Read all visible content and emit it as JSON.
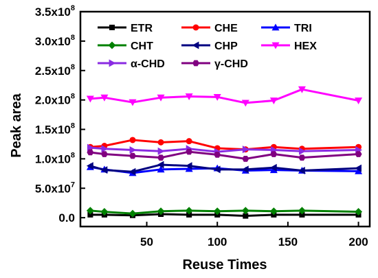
{
  "chart_data": {
    "type": "line",
    "xlabel": "Reuse Times",
    "ylabel": "Peak area",
    "xlim": [
      3,
      208
    ],
    "ylim": [
      -15000000.0,
      350000000.0
    ],
    "xticks": [
      {
        "value": 50,
        "label": "50"
      },
      {
        "value": 100,
        "label": "100"
      },
      {
        "value": 150,
        "label": "150"
      },
      {
        "value": 200,
        "label": "200"
      }
    ],
    "yticks": [
      {
        "value": 0,
        "label": "0.0",
        "exp": ""
      },
      {
        "value": 50000000.0,
        "label": "5.0x10",
        "exp": "7"
      },
      {
        "value": 100000000.0,
        "label": "1.0x10",
        "exp": "8"
      },
      {
        "value": 150000000.0,
        "label": "1.5x10",
        "exp": "8"
      },
      {
        "value": 200000000.0,
        "label": "2.0x10",
        "exp": "8"
      },
      {
        "value": 250000000.0,
        "label": "2.5x10",
        "exp": "8"
      },
      {
        "value": 300000000.0,
        "label": "3.0x10",
        "exp": "8"
      },
      {
        "value": 350000000.0,
        "label": "3.5x10",
        "exp": "8"
      }
    ],
    "grid": false,
    "legend_position": "top",
    "x": [
      10,
      20,
      40,
      60,
      80,
      100,
      120,
      140,
      160,
      200
    ],
    "series": [
      {
        "name": "ETR",
        "color": "#000000",
        "marker": "square",
        "values": [
          5000000.0,
          5000000.0,
          4000000.0,
          6000000.0,
          5000000.0,
          5000000.0,
          3000000.0,
          5000000.0,
          5000000.0,
          5000000.0
        ]
      },
      {
        "name": "CHE",
        "color": "#ff0000",
        "marker": "circle",
        "values": [
          120000000.0,
          122000000.0,
          132000000.0,
          128000000.0,
          130000000.0,
          118000000.0,
          116000000.0,
          120000000.0,
          117000000.0,
          120000000.0
        ]
      },
      {
        "name": "TRI",
        "color": "#0000ff",
        "marker": "triangle-up",
        "values": [
          86000000.0,
          82000000.0,
          76000000.0,
          82000000.0,
          83000000.0,
          84000000.0,
          80000000.0,
          81000000.0,
          80000000.0,
          79000000.0
        ]
      },
      {
        "name": "CHT",
        "color": "#008000",
        "marker": "diamond",
        "values": [
          12000000.0,
          10000000.0,
          7000000.0,
          11000000.0,
          12000000.0,
          11000000.0,
          12000000.0,
          11000000.0,
          12000000.0,
          10000000.0
        ]
      },
      {
        "name": "CHP",
        "color": "#000080",
        "marker": "triangle-left",
        "values": [
          88000000.0,
          81000000.0,
          78000000.0,
          90000000.0,
          88000000.0,
          82000000.0,
          82000000.0,
          85000000.0,
          80000000.0,
          84000000.0
        ]
      },
      {
        "name": "HEX",
        "color": "#ff00ff",
        "marker": "triangle-down",
        "values": [
          202000000.0,
          204000000.0,
          196000000.0,
          204000000.0,
          206000000.0,
          205000000.0,
          195000000.0,
          199000000.0,
          218000000.0,
          199000000.0
        ]
      },
      {
        "name": "α-CHD",
        "color": "#8a2be2",
        "marker": "triangle-right",
        "values": [
          119000000.0,
          117000000.0,
          115000000.0,
          113000000.0,
          117000000.0,
          112000000.0,
          116000000.0,
          115000000.0,
          113000000.0,
          115000000.0
        ]
      },
      {
        "name": "γ-CHD",
        "color": "#800080",
        "marker": "hexagon",
        "values": [
          111000000.0,
          108000000.0,
          105000000.0,
          102000000.0,
          112000000.0,
          107000000.0,
          100000000.0,
          108000000.0,
          102000000.0,
          108000000.0
        ]
      }
    ]
  }
}
